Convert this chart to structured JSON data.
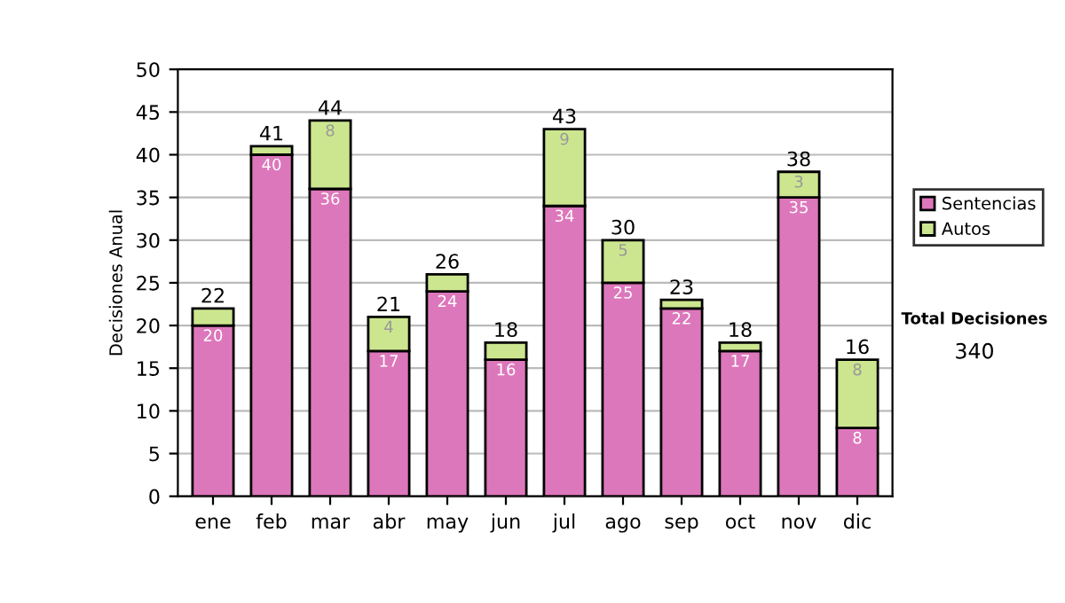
{
  "chart_data": {
    "type": "bar",
    "stacked": true,
    "ylabel": "Decisiones Anual",
    "categories": [
      "ene",
      "feb",
      "mar",
      "abr",
      "may",
      "jun",
      "jul",
      "ago",
      "sep",
      "oct",
      "nov",
      "dic"
    ],
    "series": [
      {
        "name": "Sentencias",
        "color": "#dd77bb",
        "values": [
          20,
          40,
          36,
          17,
          24,
          16,
          34,
          25,
          22,
          17,
          35,
          8
        ],
        "value_labels": [
          "20",
          "40",
          "36",
          "17",
          "24",
          "16",
          "34",
          "25",
          "22",
          "17",
          "35",
          "8"
        ]
      },
      {
        "name": "Autos",
        "color": "#cce68f",
        "values": [
          2,
          1,
          8,
          4,
          2,
          2,
          9,
          5,
          1,
          1,
          3,
          8
        ],
        "value_labels": [
          null,
          null,
          "8",
          "4",
          null,
          null,
          "9",
          "5",
          null,
          null,
          "3",
          "8"
        ]
      }
    ],
    "totals": [
      "22",
      "41",
      "44",
      "21",
      "26",
      "18",
      "43",
      "30",
      "23",
      "18",
      "38",
      "16"
    ],
    "ylim": [
      0,
      50
    ],
    "yticks": [
      0,
      5,
      10,
      15,
      20,
      25,
      30,
      35,
      40,
      45,
      50
    ],
    "grid": "y",
    "legend": "right",
    "annotations": [
      "Total Decisiones",
      "340"
    ]
  }
}
